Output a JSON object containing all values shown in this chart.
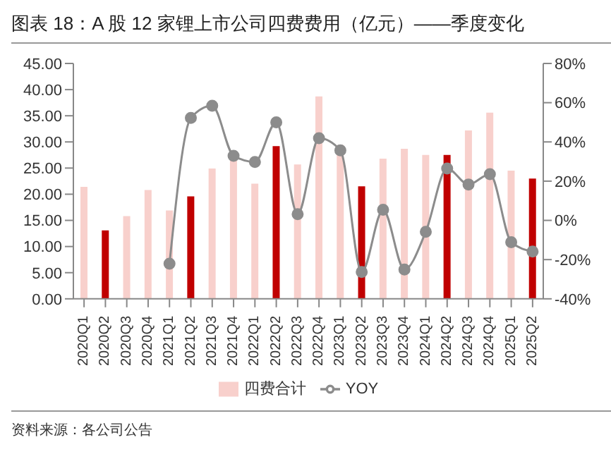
{
  "chart_data": {
    "type": "bar",
    "title": "图表 18：A 股 12 家锂上市公司四费费用（亿元）——季度变化",
    "categories": [
      "2020Q1",
      "2020Q2",
      "2020Q3",
      "2020Q4",
      "2021Q1",
      "2021Q2",
      "2021Q3",
      "2021Q4",
      "2022Q1",
      "2022Q2",
      "2022Q3",
      "2022Q4",
      "2023Q1",
      "2023Q2",
      "2023Q3",
      "2023Q4",
      "2024Q1",
      "2024Q2",
      "2024Q3",
      "2024Q4",
      "2025Q1",
      "2025Q2"
    ],
    "series": [
      {
        "name": "四费合计",
        "color": "#f8d0cc",
        "colors": [
          "#f8d0cc",
          "#c00000",
          "#f8d0cc",
          "#f8d0cc",
          "#f8d0cc",
          "#c00000",
          "#f8d0cc",
          "#f8d0cc",
          "#f8d0cc",
          "#c00000",
          "#f8d0cc",
          "#f8d0cc",
          "#f8d0cc",
          "#c00000",
          "#f8d0cc",
          "#f8d0cc",
          "#f8d0cc",
          "#c00000",
          "#f8d0cc",
          "#f8d0cc",
          "#f8d0cc",
          "#c00000"
        ],
        "values": [
          21.4,
          13.1,
          15.8,
          20.8,
          16.9,
          19.6,
          24.9,
          26.9,
          22.0,
          29.2,
          25.7,
          38.7,
          29.4,
          21.5,
          26.8,
          28.7,
          27.5,
          27.5,
          32.2,
          35.6,
          24.5,
          23.0
        ]
      },
      {
        "name": "YOY",
        "type": "line",
        "axis": "y2",
        "color": "#8c8c8c",
        "values": [
          null,
          null,
          null,
          null,
          -22.1,
          52.2,
          58.4,
          32.9,
          29.8,
          50.0,
          3.2,
          41.9,
          35.7,
          -26.3,
          5.4,
          -25.1,
          -5.8,
          26.4,
          18.3,
          23.6,
          -11.1,
          -15.9
        ]
      }
    ],
    "ylim": [
      0,
      45
    ],
    "yticks": [
      {
        "value": 0,
        "label": "0.00"
      },
      {
        "value": 5,
        "label": "5.00"
      },
      {
        "value": 10,
        "label": "10.00"
      },
      {
        "value": 15,
        "label": "15.00"
      },
      {
        "value": 20,
        "label": "20.00"
      },
      {
        "value": 25,
        "label": "25.00"
      },
      {
        "value": 30,
        "label": "30.00"
      },
      {
        "value": 35,
        "label": "35.00"
      },
      {
        "value": 40,
        "label": "40.00"
      },
      {
        "value": 45,
        "label": "45.00"
      }
    ],
    "y2lim": [
      -40,
      80
    ],
    "y2ticks": [
      {
        "value": -40,
        "label": "-40%"
      },
      {
        "value": -20,
        "label": "-20%"
      },
      {
        "value": 0,
        "label": "0%"
      },
      {
        "value": 20,
        "label": "20%"
      },
      {
        "value": 40,
        "label": "40%"
      },
      {
        "value": 60,
        "label": "60%"
      },
      {
        "value": 80,
        "label": "80%"
      }
    ],
    "marker": "circle",
    "legend": "bottom",
    "grid": false,
    "annotations": [
      "资料来源：各公司公告"
    ]
  }
}
